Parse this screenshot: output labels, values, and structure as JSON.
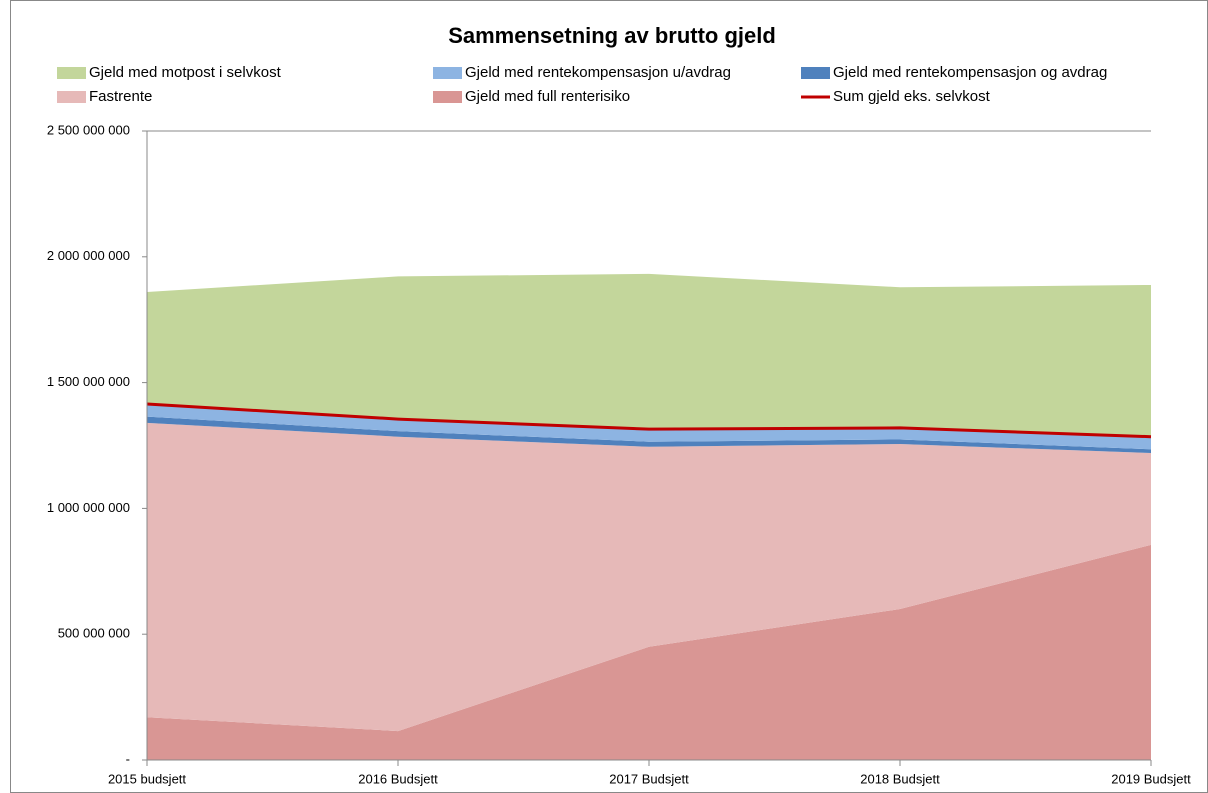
{
  "chart_data": {
    "type": "stacked_area",
    "title": "Sammensetning av brutto gjeld",
    "categories": [
      "2015 budsjett",
      "2016 Budsjett",
      "2017 Budsjett",
      "2018 Budsjett",
      "2019 Budsjett"
    ],
    "series": [
      {
        "name": "Gjeld med full renterisiko",
        "color": "#d99694",
        "values": [
          170000000,
          115000000,
          450000000,
          600000000,
          855000000
        ]
      },
      {
        "name": "Fastrente",
        "color": "#e6b9b8",
        "values": [
          1170000000,
          1170000000,
          795000000,
          656000000,
          365000000
        ]
      },
      {
        "name": "Gjeld med rentekompensasjon og avdrag",
        "color": "#4f81bd",
        "values": [
          25000000,
          22000000,
          20000000,
          18000000,
          15000000
        ]
      },
      {
        "name": "Gjeld med rentekompensasjon u/avdrag",
        "color": "#8db4e2",
        "values": [
          50000000,
          50000000,
          50000000,
          45000000,
          50000000
        ]
      },
      {
        "name": "Gjeld med motpost i selvkost",
        "color": "#c3d69b",
        "values": [
          445000000,
          565000000,
          617000000,
          560000000,
          603000000
        ]
      },
      {
        "name": "Sum gjeld eks. selvkost",
        "color": "#c00000",
        "type": "line",
        "values": [
          1415000000,
          1355000000,
          1315000000,
          1320000000,
          1285000000
        ]
      }
    ],
    "ylim": [
      0,
      2500000000
    ],
    "yticks": [
      {
        "value": 0,
        "label": "-"
      },
      {
        "value": 500000000,
        "label": "500 000 000"
      },
      {
        "value": 1000000000,
        "label": "1 000 000 000"
      },
      {
        "value": 1500000000,
        "label": "1 500 000 000"
      },
      {
        "value": 2000000000,
        "label": "2 000 000 000"
      },
      {
        "value": 2500000000,
        "label": "2 500 000 000"
      }
    ],
    "grid": false
  }
}
